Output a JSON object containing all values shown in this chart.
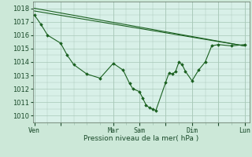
{
  "bg_color": "#cce8d8",
  "plot_bg_color": "#d8f0e8",
  "grid_color": "#a8c8b8",
  "line_color": "#1a6020",
  "marker_color": "#1a6020",
  "xlabel": "Pression niveau de la mer( hPa )",
  "ylim": [
    1009.5,
    1018.5
  ],
  "yticks": [
    1010,
    1011,
    1012,
    1013,
    1014,
    1015,
    1016,
    1017,
    1018
  ],
  "xtick_labels": [
    "Ven",
    "",
    "Mar",
    "Sam",
    "",
    "Dim",
    "",
    "Lun"
  ],
  "xtick_positions": [
    0,
    32,
    96,
    128,
    160,
    192,
    224,
    256
  ],
  "xlim": [
    -2,
    262
  ],
  "series1_x": [
    0,
    256
  ],
  "series1_y": [
    1018.0,
    1015.2
  ],
  "series2_x": [
    0,
    256
  ],
  "series2_y": [
    1017.8,
    1015.2
  ],
  "series3_x": [
    0,
    8,
    16,
    32,
    40,
    48,
    64,
    80,
    96,
    108,
    116,
    120,
    128,
    132,
    136,
    140,
    144,
    148,
    160,
    164,
    168,
    172,
    176,
    180,
    184,
    192,
    200,
    208,
    216,
    224,
    240,
    256
  ],
  "series3_y": [
    1017.5,
    1016.8,
    1016.0,
    1015.4,
    1014.5,
    1013.8,
    1013.1,
    1012.8,
    1013.9,
    1013.4,
    1012.4,
    1012.0,
    1011.8,
    1011.3,
    1010.8,
    1010.6,
    1010.5,
    1010.4,
    1012.5,
    1013.2,
    1013.1,
    1013.3,
    1014.0,
    1013.8,
    1013.3,
    1012.6,
    1013.4,
    1014.0,
    1015.2,
    1015.3,
    1015.2,
    1015.3
  ]
}
